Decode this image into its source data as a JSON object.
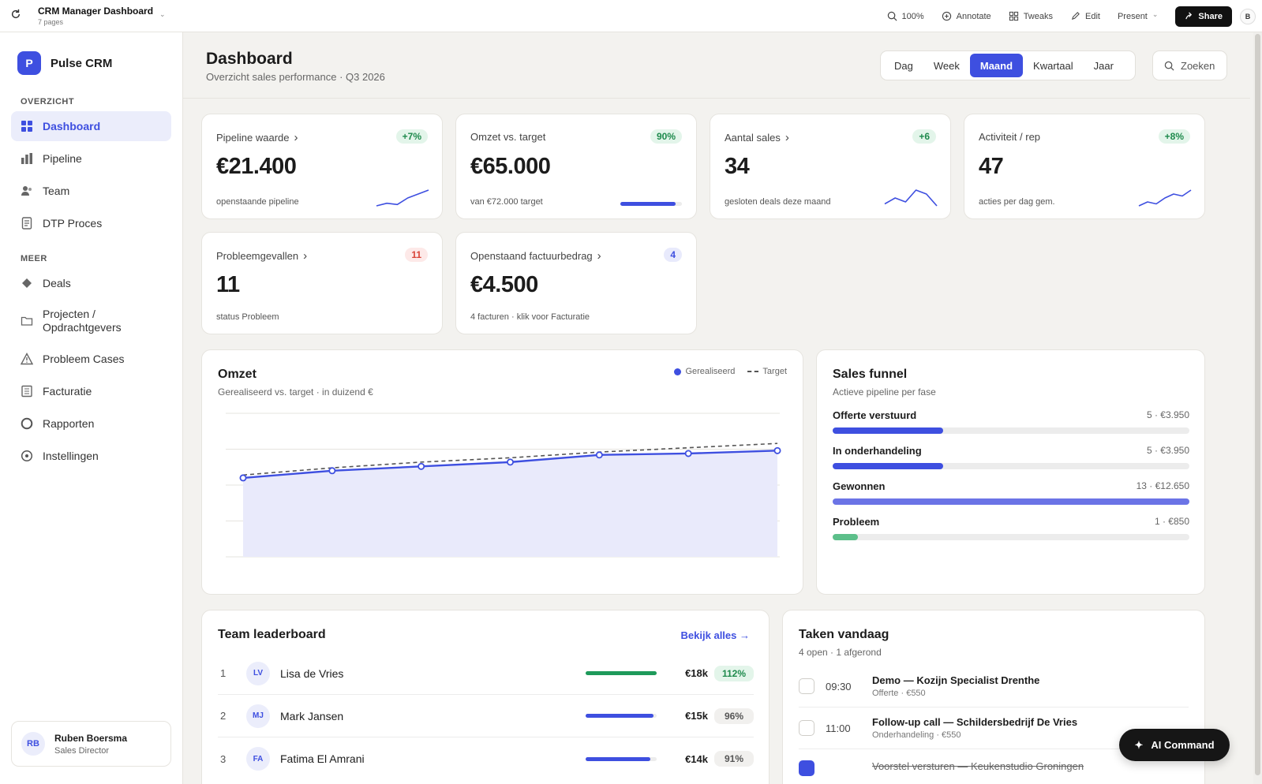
{
  "topbar": {
    "doc_title": "CRM Manager Dashboard",
    "doc_pages": "7 pages",
    "zoom": "100%",
    "annotate": "Annotate",
    "tweaks": "Tweaks",
    "edit": "Edit",
    "present": "Present",
    "share": "Share",
    "avatar": "B"
  },
  "sidebar": {
    "brand_logo": "P",
    "brand_name": "Pulse CRM",
    "section_overview": "OVERZICHT",
    "section_more": "MEER",
    "items": [
      {
        "label": "Dashboard",
        "icon": "grid-icon"
      },
      {
        "label": "Pipeline",
        "icon": "bar-chart-icon"
      },
      {
        "label": "Team",
        "icon": "users-icon"
      },
      {
        "label": "DTP Proces",
        "icon": "document-icon"
      },
      {
        "label": "Deals",
        "icon": "diamond-icon"
      },
      {
        "label": "Projecten / Opdrachtgevers",
        "line1": "Projecten /",
        "line2": "Opdrachtgevers",
        "icon": "folder-icon"
      },
      {
        "label": "Probleem Cases",
        "icon": "warning-icon"
      },
      {
        "label": "Facturatie",
        "icon": "invoice-icon"
      },
      {
        "label": "Rapporten",
        "icon": "circle-icon"
      },
      {
        "label": "Instellingen",
        "icon": "settings-icon"
      }
    ],
    "user": {
      "initials": "RB",
      "name": "Ruben Boersma",
      "role": "Sales Director"
    }
  },
  "header": {
    "title": "Dashboard",
    "subtitle": "Overzicht sales performance · Q3 2026",
    "periods": [
      "Dag",
      "Week",
      "Maand",
      "Kwartaal",
      "Jaar"
    ],
    "active_period": "Maand",
    "search": "Zoeken"
  },
  "kpis": [
    {
      "label": "Pipeline waarde",
      "badge": "+7%",
      "value": "€21.400",
      "foot": "openstaande pipeline",
      "spark": [
        2,
        3,
        2.5,
        5,
        6.5,
        8
      ]
    },
    {
      "label": "Omzet vs. target",
      "badge": "90%",
      "value": "€65.000",
      "foot": "van €72.000 target",
      "progress": 0.9
    },
    {
      "label": "Aantal sales",
      "badge": "+6",
      "value": "34",
      "foot": "gesloten deals deze maand",
      "spark": [
        2,
        5,
        3,
        9,
        7,
        1
      ]
    },
    {
      "label": "Activiteit / rep",
      "badge": "+8%",
      "value": "47",
      "foot": "acties per dag gem.",
      "spark": [
        2,
        4,
        3,
        6,
        8,
        7,
        10
      ]
    },
    {
      "label": "Probleemgevallen",
      "badge": "11",
      "value": "11",
      "foot": "status Probleem"
    },
    {
      "label": "Openstaand factuurbedrag",
      "badge": "4",
      "value": "€4.500",
      "foot": "4 facturen · klik voor Facturatie"
    }
  ],
  "revenue": {
    "title": "Omzet",
    "subtitle": "Gerealiseerd vs. target · in duizend €",
    "legend_realized": "Gerealiseerd",
    "legend_target": "Target"
  },
  "chart_data": {
    "type": "line",
    "title": "Omzet",
    "subtitle": "Gerealiseerd vs. target · in duizend €",
    "x": [
      1,
      2,
      3,
      4,
      5,
      6,
      7
    ],
    "series": [
      {
        "name": "Gerealiseerd",
        "values": [
          55,
          60,
          63,
          66,
          71,
          72,
          74
        ]
      },
      {
        "name": "Target",
        "values": [
          57,
          62,
          66,
          69,
          73,
          76,
          79
        ]
      }
    ],
    "ylim": [
      0,
      100
    ],
    "grid": true,
    "legend": "top-right"
  },
  "funnel": {
    "title": "Sales funnel",
    "subtitle": "Actieve pipeline per fase",
    "rows": [
      {
        "label": "Offerte verstuurd",
        "value": "5 · €3.950",
        "fraction": 0.31,
        "color": "#3e4fe0"
      },
      {
        "label": "In onderhandeling",
        "value": "5 · €3.950",
        "fraction": 0.31,
        "color": "#3e4fe0"
      },
      {
        "label": "Gewonnen",
        "value": "13 · €12.650",
        "fraction": 1.0,
        "color": "#6b74e6"
      },
      {
        "label": "Probleem",
        "value": "1 · €850",
        "fraction": 0.07,
        "color": "#5cbf8a"
      }
    ]
  },
  "leaderboard": {
    "title": "Team leaderboard",
    "link": "Bekijk alles →",
    "rows": [
      {
        "rank": "1",
        "initials": "LV",
        "name": "Lisa de Vries",
        "amount": "€18k",
        "pct": "112%",
        "fill": 1.0,
        "color": "#1e9a5a",
        "top": true
      },
      {
        "rank": "2",
        "initials": "MJ",
        "name": "Mark Jansen",
        "amount": "€15k",
        "pct": "96%",
        "fill": 0.96,
        "color": "#3e4fe0",
        "top": false
      },
      {
        "rank": "3",
        "initials": "FA",
        "name": "Fatima El Amrani",
        "amount": "€14k",
        "pct": "91%",
        "fill": 0.91,
        "color": "#3e4fe0",
        "top": false
      }
    ]
  },
  "tasks": {
    "title": "Taken vandaag",
    "subtitle": "4 open · 1 afgerond",
    "rows": [
      {
        "time": "09:30",
        "title": "Demo — Kozijn Specialist Drenthe",
        "sub": "Offerte · €550"
      },
      {
        "time": "11:00",
        "title": "Follow-up call — Schildersbedrijf De Vries",
        "sub": "Onderhandeling · €550"
      },
      {
        "time": "",
        "title": "Voorstel versturen — Keukenstudio Groningen",
        "sub": ""
      }
    ]
  },
  "ai_command": "AI Command"
}
